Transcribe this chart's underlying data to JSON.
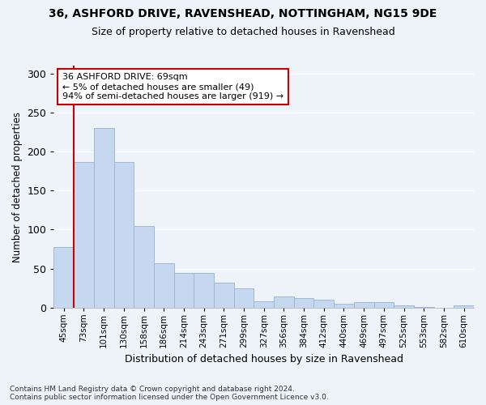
{
  "title1": "36, ASHFORD DRIVE, RAVENSHEAD, NOTTINGHAM, NG15 9DE",
  "title2": "Size of property relative to detached houses in Ravenshead",
  "xlabel": "Distribution of detached houses by size in Ravenshead",
  "ylabel": "Number of detached properties",
  "categories": [
    "45sqm",
    "73sqm",
    "101sqm",
    "130sqm",
    "158sqm",
    "186sqm",
    "214sqm",
    "243sqm",
    "271sqm",
    "299sqm",
    "327sqm",
    "356sqm",
    "384sqm",
    "412sqm",
    "440sqm",
    "469sqm",
    "497sqm",
    "525sqm",
    "553sqm",
    "582sqm",
    "610sqm"
  ],
  "values": [
    78,
    187,
    230,
    187,
    105,
    57,
    44,
    44,
    32,
    25,
    8,
    14,
    12,
    10,
    5,
    7,
    7,
    3,
    1,
    0,
    3
  ],
  "bar_color": "#c5d8f0",
  "bar_edge_color": "#a0b8d8",
  "vline_color": "#cc0000",
  "vline_x_index": 1,
  "annotation_text": "36 ASHFORD DRIVE: 69sqm\n← 5% of detached houses are smaller (49)\n94% of semi-detached houses are larger (919) →",
  "annotation_box_color": "#ffffff",
  "annotation_box_edge": "#cc0000",
  "footnote": "Contains HM Land Registry data © Crown copyright and database right 2024.\nContains public sector information licensed under the Open Government Licence v3.0.",
  "ylim": [
    0,
    310
  ],
  "background_color": "#eef2f9",
  "grid_color": "#ffffff"
}
